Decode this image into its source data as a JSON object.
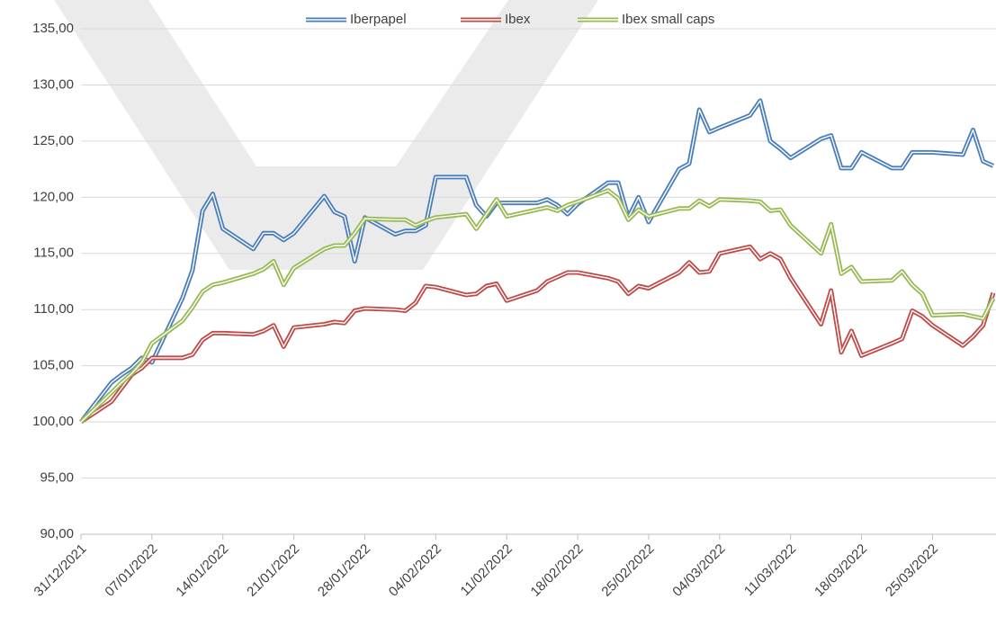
{
  "chart_data": {
    "type": "line",
    "x": [
      "31/12/2021",
      "03/01/2022",
      "04/01/2022",
      "05/01/2022",
      "06/01/2022",
      "07/01/2022",
      "10/01/2022",
      "11/01/2022",
      "12/01/2022",
      "13/01/2022",
      "14/01/2022",
      "17/01/2022",
      "18/01/2022",
      "19/01/2022",
      "20/01/2022",
      "21/01/2022",
      "24/01/2022",
      "25/01/2022",
      "26/01/2022",
      "27/01/2022",
      "28/01/2022",
      "31/01/2022",
      "01/02/2022",
      "02/02/2022",
      "03/02/2022",
      "04/02/2022",
      "07/02/2022",
      "08/02/2022",
      "09/02/2022",
      "10/02/2022",
      "11/02/2022",
      "14/02/2022",
      "15/02/2022",
      "16/02/2022",
      "17/02/2022",
      "18/02/2022",
      "21/02/2022",
      "22/02/2022",
      "23/02/2022",
      "24/02/2022",
      "25/02/2022",
      "28/02/2022",
      "01/03/2022",
      "02/03/2022",
      "03/03/2022",
      "04/03/2022",
      "07/03/2022",
      "08/03/2022",
      "09/03/2022",
      "10/03/2022",
      "11/03/2022",
      "14/03/2022",
      "15/03/2022",
      "16/03/2022",
      "17/03/2022",
      "18/03/2022",
      "21/03/2022",
      "22/03/2022",
      "23/03/2022",
      "24/03/2022",
      "25/03/2022",
      "28/03/2022",
      "29/03/2022",
      "30/03/2022",
      "31/03/2022"
    ],
    "series": [
      {
        "name": "Iberpapel",
        "color": "#4a7ebb",
        "values": [
          100,
          103.5,
          104.2,
          104.8,
          105.7,
          105.3,
          111,
          113.5,
          118.8,
          120.3,
          117.2,
          115.4,
          116.8,
          116.8,
          116.2,
          116.8,
          120.1,
          118.7,
          118.3,
          114.3,
          118.2,
          116.7,
          117,
          117,
          117.5,
          121.8,
          121.8,
          119.3,
          118.3,
          119.5,
          119.5,
          119.5,
          119.8,
          119.3,
          118.5,
          119.4,
          121.3,
          121.3,
          118.2,
          120,
          117.8,
          122.5,
          123,
          127.8,
          125.8,
          126.2,
          127.3,
          128.6,
          125,
          124.3,
          123.5,
          125.2,
          125.5,
          122.6,
          122.6,
          124,
          122.6,
          122.6,
          124,
          124,
          124,
          123.8,
          126,
          123.2,
          122.8
        ]
      },
      {
        "name": "Ibex",
        "color": "#be4b48",
        "values": [
          100,
          101.8,
          103,
          104.2,
          104.8,
          105.7,
          105.7,
          106,
          107.3,
          107.9,
          107.9,
          107.8,
          108.1,
          108.6,
          106.7,
          108.4,
          108.7,
          108.9,
          108.8,
          109.9,
          110.1,
          110,
          109.9,
          110.6,
          112.1,
          112,
          111.3,
          111.4,
          112.1,
          112.3,
          110.8,
          111.7,
          112.5,
          112.9,
          113.3,
          113.3,
          112.8,
          112.5,
          111.4,
          112.1,
          111.9,
          113.3,
          114.2,
          113.3,
          113.4,
          115,
          115.6,
          114.5,
          115,
          114.5,
          112.8,
          108.7,
          111.7,
          106.2,
          108.1,
          105.9,
          107,
          107.4,
          109.9,
          109.4,
          108.6,
          106.8,
          107.6,
          108.6,
          111.5
        ]
      },
      {
        "name": "Ibex small caps",
        "color": "#98b954",
        "values": [
          100,
          102.6,
          103.5,
          104.3,
          105.3,
          107,
          109,
          110.2,
          111.6,
          112.2,
          112.4,
          113.2,
          113.6,
          114.3,
          112.2,
          113.7,
          115.4,
          115.7,
          115.7,
          116.8,
          118.1,
          118,
          118,
          117.5,
          117.9,
          118.2,
          118.5,
          117.2,
          118.5,
          119.8,
          118.3,
          118.9,
          119.1,
          118.8,
          119.3,
          119.6,
          120.6,
          119.9,
          118,
          118.9,
          118.3,
          119,
          119,
          119.7,
          119.2,
          119.8,
          119.7,
          119.6,
          118.8,
          118.9,
          117.5,
          115,
          117.6,
          113.2,
          113.8,
          112.5,
          112.6,
          113.4,
          112.2,
          111.4,
          109.5,
          109.6,
          109.4,
          109.2,
          111
        ]
      }
    ],
    "xlim": [
      "31/12/2021",
      "31/03/2022"
    ],
    "xticks": [
      "31/12/2021",
      "07/01/2022",
      "14/01/2022",
      "21/01/2022",
      "28/01/2022",
      "04/02/2022",
      "11/02/2022",
      "18/02/2022",
      "25/02/2022",
      "04/03/2022",
      "11/03/2022",
      "18/03/2022",
      "25/03/2022"
    ],
    "ylim": [
      90,
      135
    ],
    "yticks": [
      {
        "value": 90,
        "label": "90,00"
      },
      {
        "value": 95,
        "label": "95,00"
      },
      {
        "value": 100,
        "label": "100,00"
      },
      {
        "value": 105,
        "label": "105,00"
      },
      {
        "value": 110,
        "label": "110,00"
      },
      {
        "value": 115,
        "label": "115,00"
      },
      {
        "value": 120,
        "label": "120,00"
      },
      {
        "value": 125,
        "label": "125,00"
      },
      {
        "value": 130,
        "label": "130,00"
      },
      {
        "value": 135,
        "label": "135,00"
      }
    ],
    "grid": true,
    "legend": "top"
  }
}
